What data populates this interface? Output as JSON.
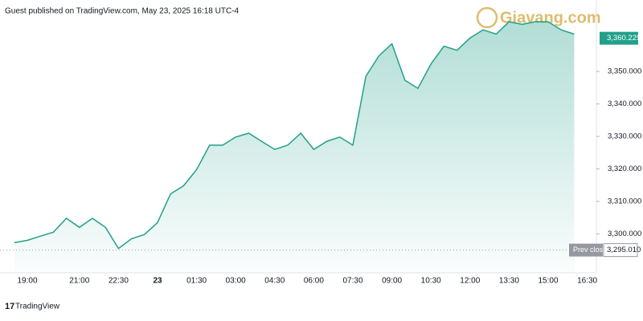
{
  "header": "Guest published on TradingView.com, May 23, 2025 16:18 UTC-4",
  "watermark": "Giavang.com",
  "footer": "TradingView",
  "chart_data": {
    "type": "area",
    "color": "#22a08a",
    "categories": [
      null,
      "19:00",
      null,
      null,
      null,
      "21:00",
      null,
      null,
      "22:30",
      null,
      null,
      "23",
      null,
      null,
      "01:30",
      null,
      null,
      "03:00",
      null,
      null,
      "04:30",
      null,
      null,
      "06:00",
      null,
      null,
      "07:30",
      null,
      null,
      "09:00",
      null,
      null,
      "10:30",
      null,
      null,
      "12:00",
      null,
      null,
      "13:30",
      null,
      null,
      "15:00",
      null,
      null,
      "16:30"
    ],
    "values": [
      3297.3,
      3298,
      3299.3,
      3300.5,
      3304.8,
      3302,
      3304.8,
      3302,
      3295.5,
      3298.5,
      3299.8,
      3303.5,
      3312.3,
      3314.8,
      3319.8,
      3327.3,
      3327.3,
      3329.8,
      3331,
      3328.5,
      3326,
      3327.3,
      3331,
      3326,
      3328.5,
      3329.8,
      3327.3,
      3348.5,
      3354.8,
      3358.5,
      3347.3,
      3344.8,
      3352.3,
      3357.8,
      3356.5,
      3360.3,
      3362.8,
      3361.5,
      3365.3,
      3364.5,
      3365.3,
      3365.3,
      3362.8,
      3361.5,
      null
    ],
    "ylim": [
      3288,
      3372
    ],
    "yticks": [
      {
        "value": 3300,
        "label": "3,300.000"
      },
      {
        "value": 3310,
        "label": "3,310.000"
      },
      {
        "value": 3320,
        "label": "3,320.000"
      },
      {
        "value": 3330,
        "label": "3,330.000"
      },
      {
        "value": 3340,
        "label": "3,340.000"
      },
      {
        "value": 3350,
        "label": "3,350.000"
      }
    ],
    "last_price": {
      "value": 3360.225,
      "label": "3,360.225"
    },
    "prev_close": {
      "name": "Prev close",
      "value": 3295.01,
      "label": "3,295.010"
    }
  }
}
